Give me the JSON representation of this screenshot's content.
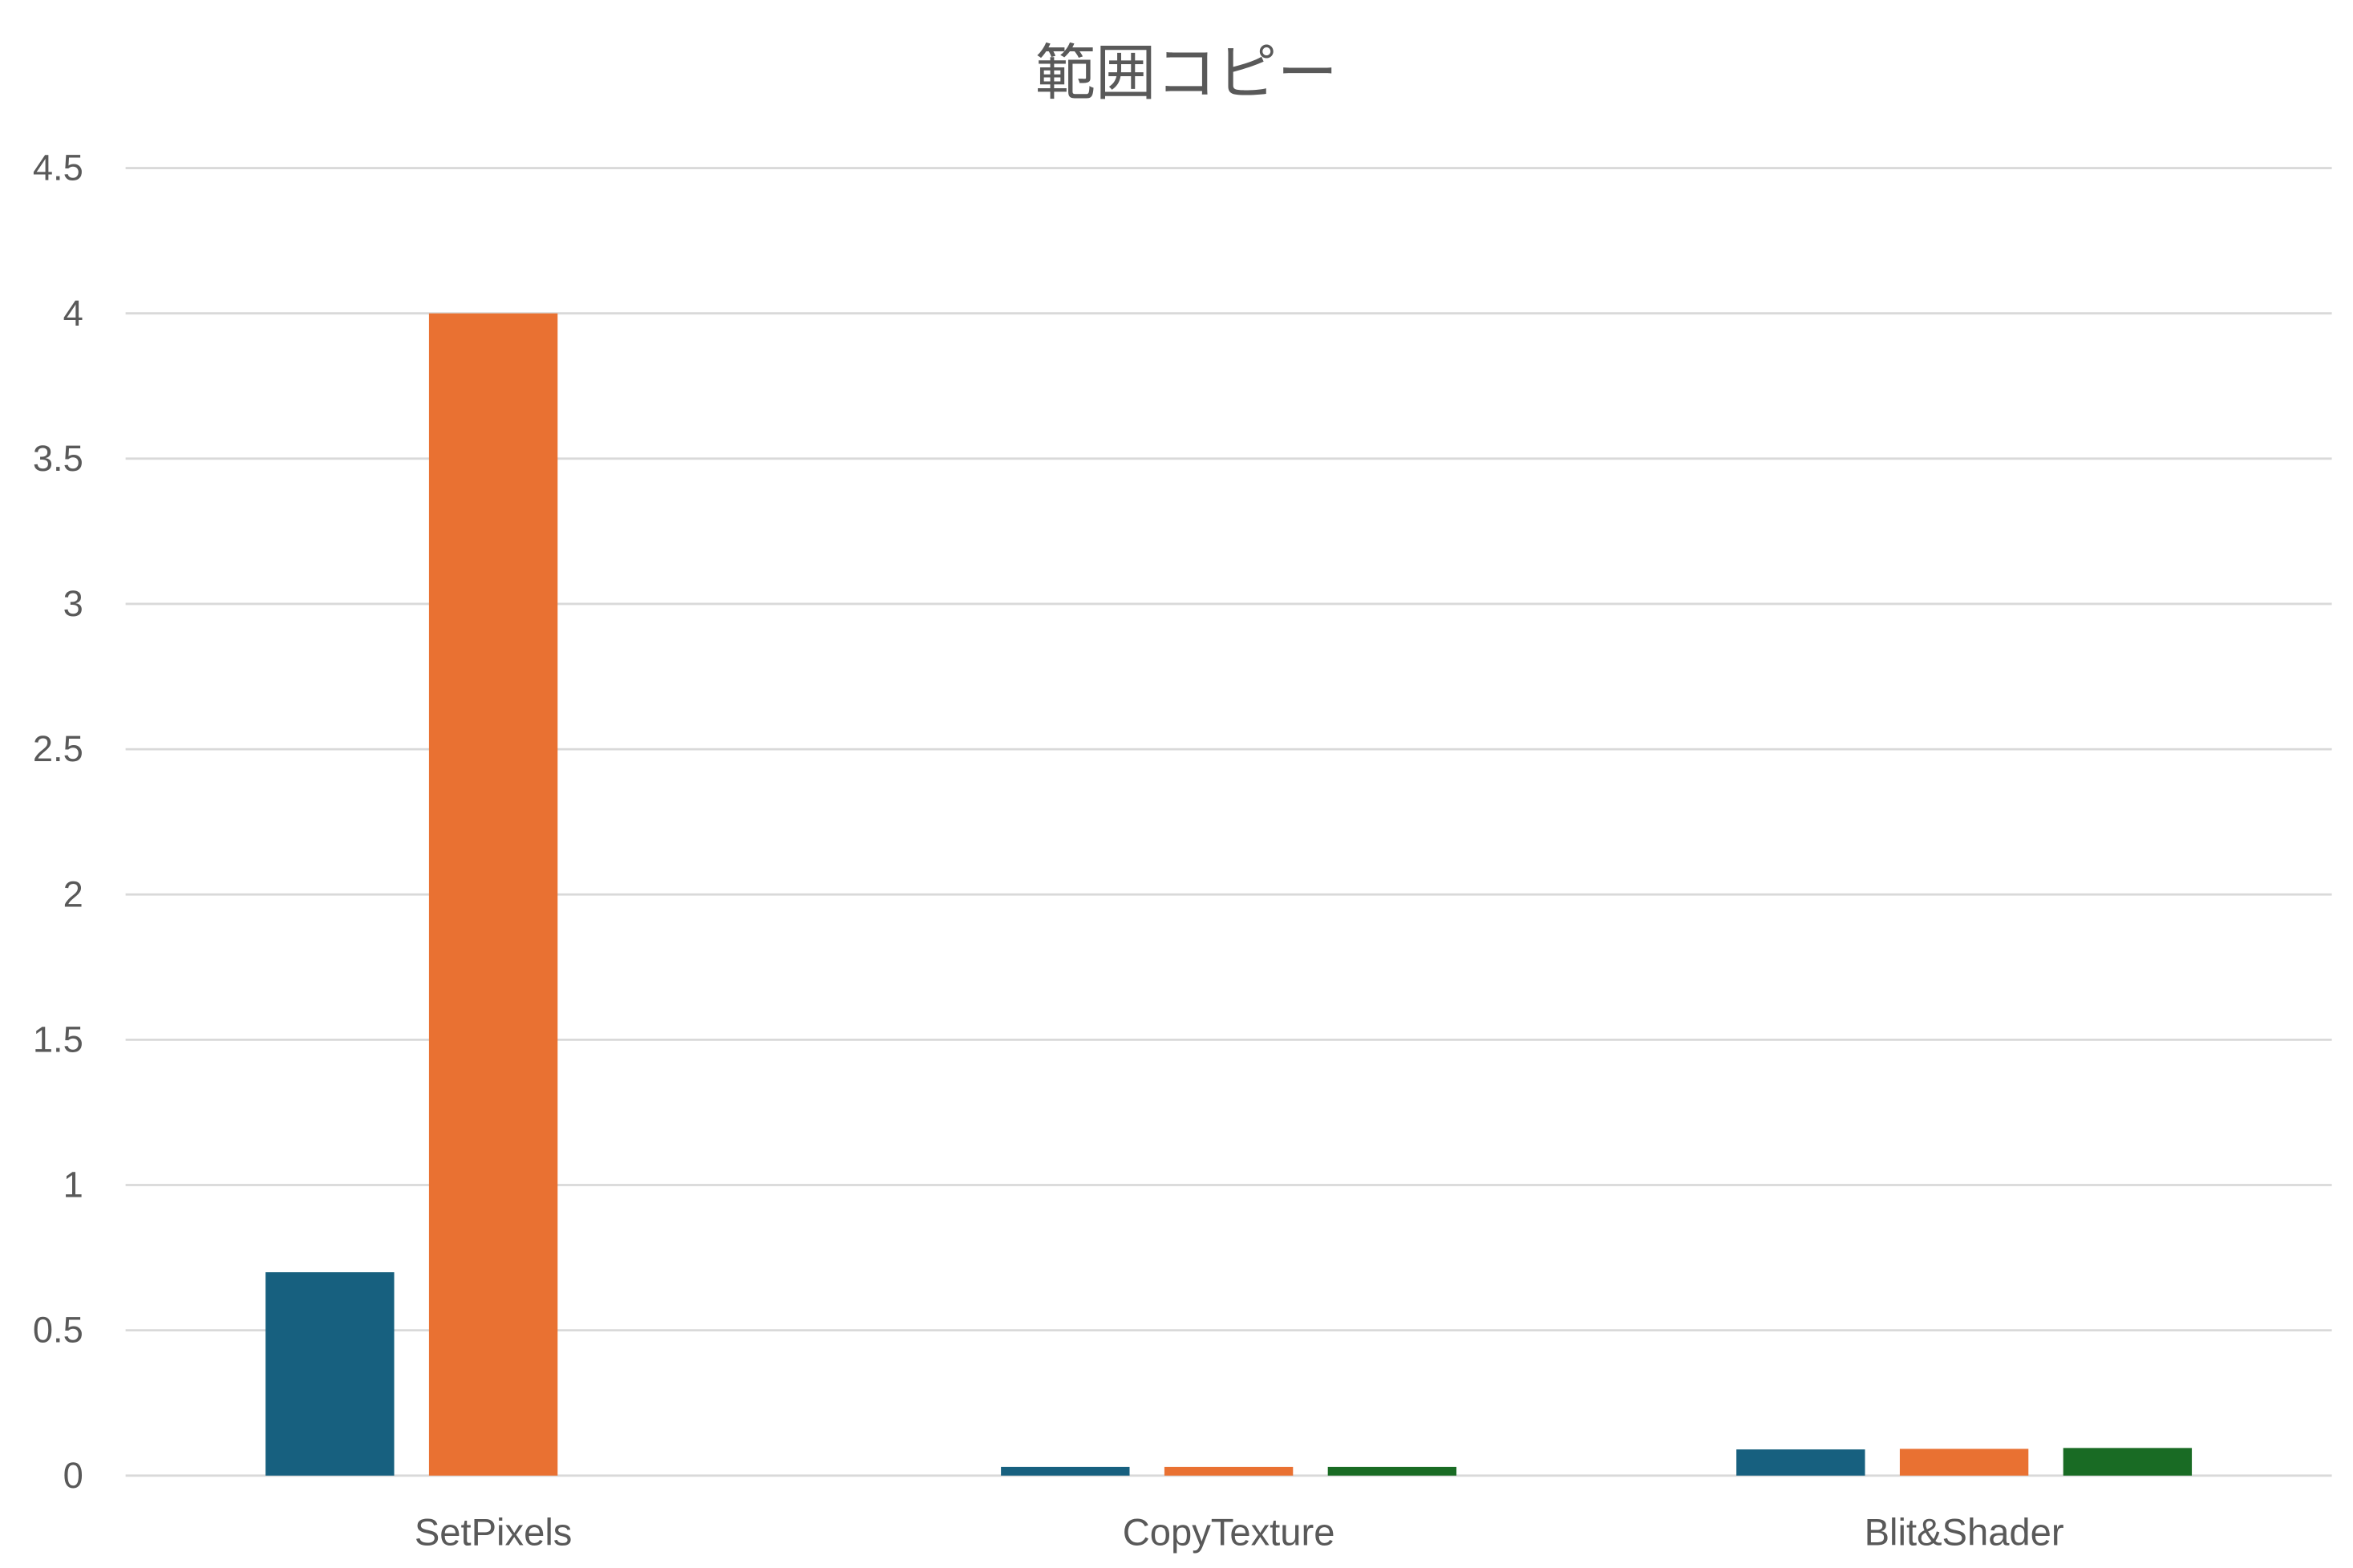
{
  "chart_data": {
    "type": "bar",
    "title": "範囲コピー",
    "xlabel": "",
    "ylabel": "",
    "categories": [
      "SetPixels",
      "CopyTexture",
      "Blit&Shader"
    ],
    "series": [
      {
        "values": [
          0.7,
          0.03,
          0.09
        ],
        "color": "#17607f"
      },
      {
        "values": [
          4.0,
          0.03,
          0.092
        ],
        "color": "#e97132"
      },
      {
        "values": [
          null,
          0.03,
          0.095
        ],
        "color": "#196b24"
      }
    ],
    "ylim": [
      0,
      4.5
    ],
    "yticks": [
      "0",
      "0.5",
      "1",
      "1.5",
      "2",
      "2.5",
      "3",
      "3.5",
      "4",
      "4.5"
    ],
    "grid": true,
    "legend": "none"
  }
}
